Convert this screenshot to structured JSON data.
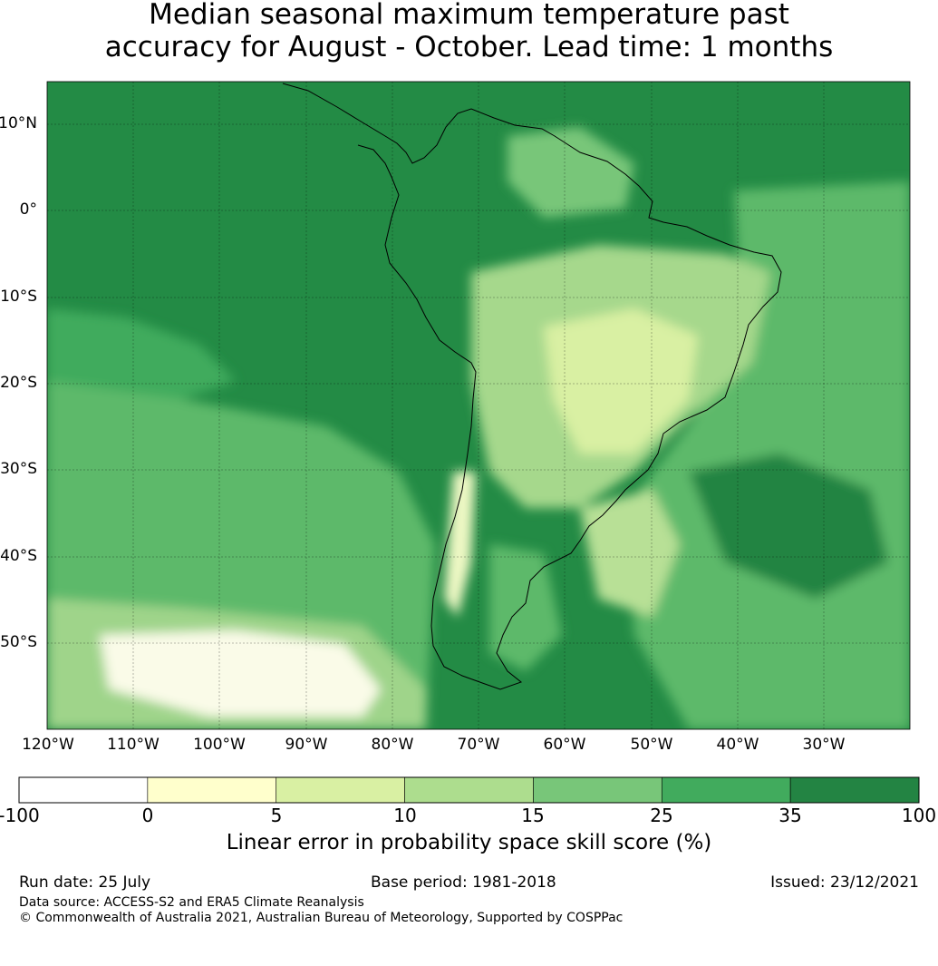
{
  "title": {
    "line1": "Median seasonal maximum temperature past",
    "line2": "accuracy for August - October. Lead time: 1 months"
  },
  "map": {
    "lat_ticks": [
      "10°N",
      "0°",
      "10°S",
      "20°S",
      "30°S",
      "40°S",
      "50°S"
    ],
    "lon_ticks": [
      "120°W",
      "110°W",
      "100°W",
      "90°W",
      "80°W",
      "70°W",
      "60°W",
      "50°W",
      "40°W",
      "30°W"
    ],
    "ocean_fill": "#238b45",
    "coastline_color": "#000000"
  },
  "colorbar": {
    "ticks": [
      "-100",
      "0",
      "5",
      "10",
      "15",
      "25",
      "35",
      "100"
    ],
    "colors": [
      "#ffffff",
      "#ffffcc",
      "#d9f0a3",
      "#addd8e",
      "#78c679",
      "#41ab5d",
      "#238443"
    ],
    "label": "Linear error in probability space skill score (%)"
  },
  "footer": {
    "run_date": "Run date: 25 July",
    "base_period": "Base period: 1981-2018",
    "issued": "Issued: 23/12/2021",
    "data_source": "Data source: ACCESS-S2 and ERA5 Climate Reanalysis",
    "copyright": "© Commonwealth of Australia 2021, Australian Bureau of Meteorology, Supported by COSPPac"
  }
}
